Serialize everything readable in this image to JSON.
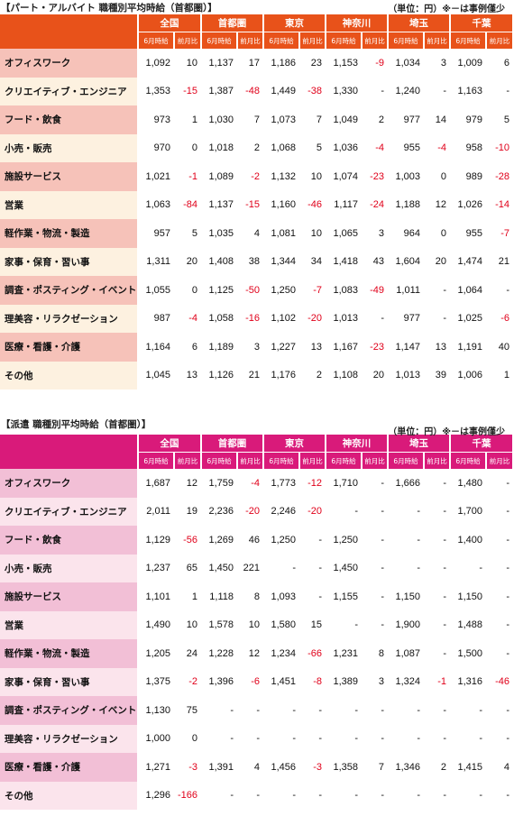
{
  "part": {
    "title": "【パート・アルバイト 職種別平均時給（首都圏）】",
    "unit": "（単位：円）※－は事例僅少",
    "regions": [
      "全国",
      "首都圏",
      "東京",
      "神奈川",
      "埼玉",
      "千葉"
    ],
    "sub_headers": [
      "6月時給",
      "前月比"
    ],
    "rows": [
      {
        "label": "オフィスワーク",
        "cells": [
          "1,092",
          "10",
          "1,137",
          "17",
          "1,186",
          "23",
          "1,153",
          "-9",
          "1,034",
          "3",
          "1,009",
          "6"
        ]
      },
      {
        "label": "クリエイティブ・エンジニア",
        "cells": [
          "1,353",
          "-15",
          "1,387",
          "-48",
          "1,449",
          "-38",
          "1,330",
          "-",
          "1,240",
          "-",
          "1,163",
          "-"
        ]
      },
      {
        "label": "フード・飲食",
        "cells": [
          "973",
          "1",
          "1,030",
          "7",
          "1,073",
          "7",
          "1,049",
          "2",
          "977",
          "14",
          "979",
          "5"
        ]
      },
      {
        "label": "小売・販売",
        "cells": [
          "970",
          "0",
          "1,018",
          "2",
          "1,068",
          "5",
          "1,036",
          "-4",
          "955",
          "-4",
          "958",
          "-10"
        ]
      },
      {
        "label": "施設サービス",
        "cells": [
          "1,021",
          "-1",
          "1,089",
          "-2",
          "1,132",
          "10",
          "1,074",
          "-23",
          "1,003",
          "0",
          "989",
          "-28"
        ]
      },
      {
        "label": "営業",
        "cells": [
          "1,063",
          "-84",
          "1,137",
          "-15",
          "1,160",
          "-46",
          "1,117",
          "-24",
          "1,188",
          "12",
          "1,026",
          "-14"
        ]
      },
      {
        "label": "軽作業・物流・製造",
        "cells": [
          "957",
          "5",
          "1,035",
          "4",
          "1,081",
          "10",
          "1,065",
          "3",
          "964",
          "0",
          "955",
          "-7"
        ]
      },
      {
        "label": "家事・保育・習い事",
        "cells": [
          "1,311",
          "20",
          "1,408",
          "38",
          "1,344",
          "34",
          "1,418",
          "43",
          "1,604",
          "20",
          "1,474",
          "21"
        ]
      },
      {
        "label": "調査・ポスティング・イベント",
        "cells": [
          "1,055",
          "0",
          "1,125",
          "-50",
          "1,250",
          "-7",
          "1,083",
          "-49",
          "1,011",
          "-",
          "1,064",
          "-"
        ]
      },
      {
        "label": "理美容・リラクゼーション",
        "cells": [
          "987",
          "-4",
          "1,058",
          "-16",
          "1,102",
          "-20",
          "1,013",
          "-",
          "977",
          "-",
          "1,025",
          "-6"
        ]
      },
      {
        "label": "医療・看護・介護",
        "cells": [
          "1,164",
          "6",
          "1,189",
          "3",
          "1,227",
          "13",
          "1,167",
          "-23",
          "1,147",
          "13",
          "1,191",
          "40"
        ]
      },
      {
        "label": "その他",
        "cells": [
          "1,045",
          "13",
          "1,126",
          "21",
          "1,176",
          "2",
          "1,108",
          "20",
          "1,013",
          "39",
          "1,006",
          "1"
        ]
      }
    ]
  },
  "haken": {
    "title": "【派遣 職種別平均時給（首都圏）】",
    "unit": "（単位：円）※－は事例僅少",
    "regions": [
      "全国",
      "首都圏",
      "東京",
      "神奈川",
      "埼玉",
      "千葉"
    ],
    "sub_headers": [
      "6月時給",
      "前月比"
    ],
    "rows": [
      {
        "label": "オフィスワーク",
        "cells": [
          "1,687",
          "12",
          "1,759",
          "-4",
          "1,773",
          "-12",
          "1,710",
          "-",
          "1,666",
          "-",
          "1,480",
          "-"
        ]
      },
      {
        "label": "クリエイティブ・エンジニア",
        "cells": [
          "2,011",
          "19",
          "2,236",
          "-20",
          "2,246",
          "-20",
          "-",
          "-",
          "-",
          "-",
          "1,700",
          "-"
        ]
      },
      {
        "label": "フード・飲食",
        "cells": [
          "1,129",
          "-56",
          "1,269",
          "46",
          "1,250",
          "-",
          "1,250",
          "-",
          "-",
          "-",
          "1,400",
          "-"
        ]
      },
      {
        "label": "小売・販売",
        "cells": [
          "1,237",
          "65",
          "1,450",
          "221",
          "-",
          "-",
          "1,450",
          "-",
          "-",
          "-",
          "-",
          "-"
        ]
      },
      {
        "label": "施設サービス",
        "cells": [
          "1,101",
          "1",
          "1,118",
          "8",
          "1,093",
          "-",
          "1,155",
          "-",
          "1,150",
          "-",
          "1,150",
          "-"
        ]
      },
      {
        "label": "営業",
        "cells": [
          "1,490",
          "10",
          "1,578",
          "10",
          "1,580",
          "15",
          "-",
          "-",
          "1,900",
          "-",
          "1,488",
          "-"
        ]
      },
      {
        "label": "軽作業・物流・製造",
        "cells": [
          "1,205",
          "24",
          "1,228",
          "12",
          "1,234",
          "-66",
          "1,231",
          "8",
          "1,087",
          "-",
          "1,500",
          "-"
        ]
      },
      {
        "label": "家事・保育・習い事",
        "cells": [
          "1,375",
          "-2",
          "1,396",
          "-6",
          "1,451",
          "-8",
          "1,389",
          "3",
          "1,324",
          "-1",
          "1,316",
          "-46"
        ]
      },
      {
        "label": "調査・ポスティング・イベント",
        "cells": [
          "1,130",
          "75",
          "-",
          "-",
          "-",
          "-",
          "-",
          "-",
          "-",
          "-",
          "-",
          "-"
        ]
      },
      {
        "label": "理美容・リラクゼーション",
        "cells": [
          "1,000",
          "0",
          "-",
          "-",
          "-",
          "-",
          "-",
          "-",
          "-",
          "-",
          "-",
          "-"
        ]
      },
      {
        "label": "医療・看護・介護",
        "cells": [
          "1,271",
          "-3",
          "1,391",
          "4",
          "1,456",
          "-3",
          "1,358",
          "7",
          "1,346",
          "2",
          "1,415",
          "4"
        ]
      },
      {
        "label": "その他",
        "cells": [
          "1,296",
          "-166",
          "-",
          "-",
          "-",
          "-",
          "-",
          "-",
          "-",
          "-",
          "-",
          "-"
        ]
      }
    ]
  }
}
